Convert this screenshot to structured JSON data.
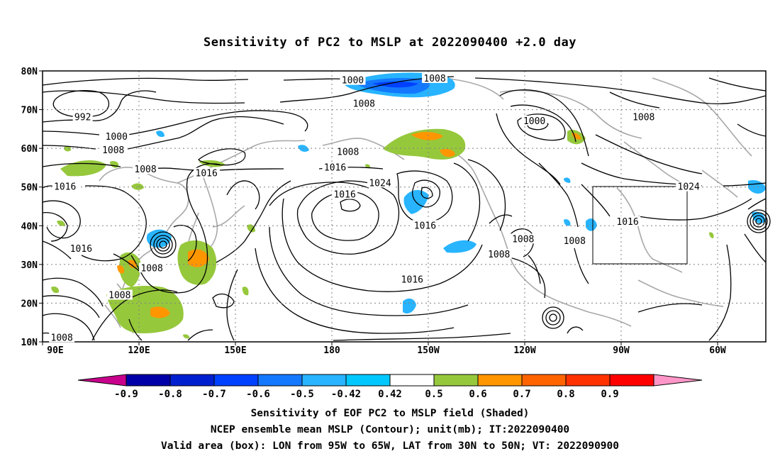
{
  "title": "Sensitivity of PC2 to MSLP at 2022090400 +2.0 day",
  "map": {
    "lat_labels": [
      "80N",
      "70N",
      "60N",
      "50N",
      "40N",
      "30N",
      "20N",
      "10N"
    ],
    "lon_labels": [
      "90E",
      "120E",
      "150E",
      "180",
      "150W",
      "120W",
      "90W",
      "60W"
    ],
    "projection": "cylindrical",
    "lon_range": [
      90,
      315
    ],
    "lat_range": [
      10,
      80
    ],
    "grid": "dotted",
    "valid_box": {
      "lon": [
        "95W",
        "65W"
      ],
      "lat": [
        "30N",
        "50N"
      ]
    },
    "contour_labels": [
      {
        "text": "1000",
        "lon": -173.5,
        "lat": 77.5
      },
      {
        "text": "1008",
        "lon": -148,
        "lat": 78
      },
      {
        "text": "1008",
        "lon": -170,
        "lat": 71.5
      },
      {
        "text": "992",
        "lon": 102.5,
        "lat": 68
      },
      {
        "text": "1000",
        "lon": 113,
        "lat": 63
      },
      {
        "text": "1008",
        "lon": 112,
        "lat": 59.5
      },
      {
        "text": "1008",
        "lon": 122,
        "lat": 54.5
      },
      {
        "text": "1016",
        "lon": 97,
        "lat": 50
      },
      {
        "text": "1016",
        "lon": 141,
        "lat": 53.5
      },
      {
        "text": "1008",
        "lon": -175,
        "lat": 59
      },
      {
        "text": "1016",
        "lon": -179,
        "lat": 55
      },
      {
        "text": "1016",
        "lon": -176,
        "lat": 48
      },
      {
        "text": "1024",
        "lon": -165,
        "lat": 51
      },
      {
        "text": "1016",
        "lon": -151,
        "lat": 40
      },
      {
        "text": "1000",
        "lon": -117,
        "lat": 67
      },
      {
        "text": "1008",
        "lon": -83,
        "lat": 68
      },
      {
        "text": "1024",
        "lon": -69,
        "lat": 50
      },
      {
        "text": "1016",
        "lon": -88,
        "lat": 41
      },
      {
        "text": "1008",
        "lon": -104.5,
        "lat": 36
      },
      {
        "text": "1008",
        "lon": -120.5,
        "lat": 36.5
      },
      {
        "text": "1008",
        "lon": -128,
        "lat": 32.5
      },
      {
        "text": "1016",
        "lon": -155,
        "lat": 26
      },
      {
        "text": "1016",
        "lon": 102,
        "lat": 34
      },
      {
        "text": "1008",
        "lon": 124,
        "lat": 29
      },
      {
        "text": "1008",
        "lon": 114,
        "lat": 22
      },
      {
        "text": "1008",
        "lon": 96,
        "lat": 11
      }
    ]
  },
  "colorbar": {
    "labels": [
      "-0.9",
      "-0.8",
      "-0.7",
      "-0.6",
      "-0.5",
      "-0.42",
      "0.42",
      "0.5",
      "0.6",
      "0.7",
      "0.8",
      "0.9"
    ],
    "colors": [
      "#c8008c",
      "#0000a8",
      "#0020d0",
      "#0040ff",
      "#1478ff",
      "#28b4ff",
      "#00c8ff",
      "#ffffff",
      "#96c83c",
      "#ff9600",
      "#ff6400",
      "#ff3200",
      "#ff0000",
      "#ff96c8"
    ]
  },
  "captions": [
    "Sensitivity of EOF PC2 to MSLP field (Shaded)",
    "NCEP ensemble mean MSLP (Contour); unit(mb); IT:2022090400",
    "Valid area (box): LON from 95W to 65W, LAT from 30N to 50N; VT: 2022090900"
  ]
}
